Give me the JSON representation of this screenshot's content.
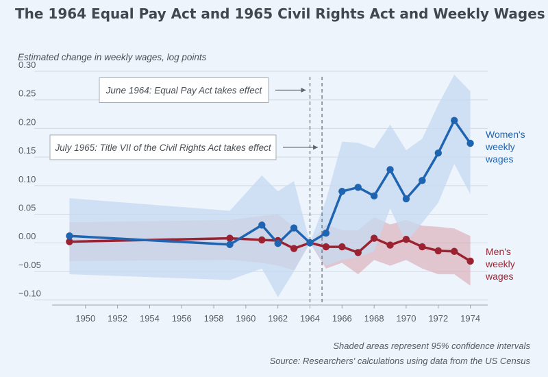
{
  "title": "The 1964 Equal Pay Act and 1965 Civil Rights Act and Weekly Wages",
  "footnotes": {
    "ci_note": "Shaded areas represent 95% confidence intervals",
    "source": "Source: Researchers' calculations using data from the US Census"
  },
  "colors": {
    "women": "#1f64b0",
    "women_band": "#c5d9f1",
    "men": "#9b2230",
    "men_band": "#d9a7b3",
    "grid": "#d2d8df",
    "axis_text": "#555b62",
    "dashed_line": "#5b6570",
    "background": "#eef4fc"
  },
  "chart_data": {
    "type": "line",
    "title": "The 1964 Equal Pay Act and 1965 Civil Rights Act and Weekly Wages",
    "ylabel": "Estimated change in weekly wages, log points",
    "xlabel": "",
    "xlim": [
      1948,
      1975
    ],
    "ylim": [
      -0.11,
      0.3
    ],
    "x_ticks": [
      1950,
      1952,
      1954,
      1956,
      1958,
      1960,
      1962,
      1964,
      1966,
      1968,
      1970,
      1972,
      1974
    ],
    "x_tick_labels": [
      "1950",
      "1952",
      "1954",
      "1956",
      "1958",
      "1960",
      "1962",
      "1964",
      "1966",
      "1968",
      "1970",
      "1972",
      "1974"
    ],
    "y_ticks": [
      -0.1,
      -0.05,
      0,
      0.05,
      0.1,
      0.15,
      0.2,
      0.25,
      0.3
    ],
    "y_tick_labels": [
      "−0.10",
      "−0.05",
      "0.00",
      "0.05",
      "0.10",
      "0.15",
      "0.20",
      "0.25",
      "0.30"
    ],
    "grid": true,
    "series": [
      {
        "name": "Women's weekly wages",
        "label_lines": [
          "Women's",
          "weekly",
          "wages"
        ],
        "color_key": "women",
        "x": [
          1949,
          1959,
          1961,
          1962,
          1963,
          1964,
          1965,
          1966,
          1967,
          1968,
          1969,
          1970,
          1971,
          1972,
          1973,
          1974
        ],
        "values": [
          0.012,
          -0.003,
          0.031,
          -0.001,
          0.026,
          0.0,
          0.017,
          0.09,
          0.097,
          0.082,
          0.128,
          0.077,
          0.109,
          0.157,
          0.214,
          0.174
        ],
        "ci_lower": [
          -0.055,
          -0.065,
          -0.045,
          -0.095,
          -0.05,
          0.0,
          -0.04,
          -0.03,
          -0.025,
          -0.015,
          0.06,
          0.0,
          0.035,
          0.07,
          0.138,
          0.085
        ],
        "ci_upper": [
          0.078,
          0.056,
          0.118,
          0.09,
          0.108,
          0.0,
          0.075,
          0.177,
          0.175,
          0.165,
          0.207,
          0.162,
          0.182,
          0.242,
          0.294,
          0.265
        ]
      },
      {
        "name": "Men's weekly wages",
        "label_lines": [
          "Men's",
          "weekly",
          "wages"
        ],
        "color_key": "men",
        "x": [
          1949,
          1959,
          1961,
          1962,
          1963,
          1964,
          1965,
          1966,
          1967,
          1968,
          1969,
          1970,
          1971,
          1972,
          1973,
          1974
        ],
        "values": [
          0.002,
          0.008,
          0.005,
          0.004,
          -0.01,
          0.0,
          -0.007,
          -0.007,
          -0.017,
          0.008,
          -0.004,
          0.006,
          -0.007,
          -0.014,
          -0.015,
          -0.032
        ],
        "ci_lower": [
          -0.032,
          -0.03,
          -0.035,
          -0.04,
          -0.048,
          0.0,
          -0.045,
          -0.035,
          -0.055,
          -0.03,
          -0.04,
          -0.03,
          -0.045,
          -0.055,
          -0.055,
          -0.075
        ],
        "ci_upper": [
          0.036,
          0.04,
          0.047,
          0.05,
          0.028,
          0.0,
          0.032,
          0.022,
          0.022,
          0.045,
          0.032,
          0.04,
          0.03,
          0.028,
          0.025,
          0.012
        ]
      }
    ],
    "event_lines": [
      1964.0,
      1964.75
    ],
    "annotations": [
      {
        "text": "June 1964: Equal Pay Act takes effect",
        "arrow_to_x": 1964.0,
        "y": 0.267
      },
      {
        "text": "July 1965: Title VII of the Civil Rights Act takes effect",
        "arrow_to_x": 1964.75,
        "y": 0.167
      }
    ]
  }
}
